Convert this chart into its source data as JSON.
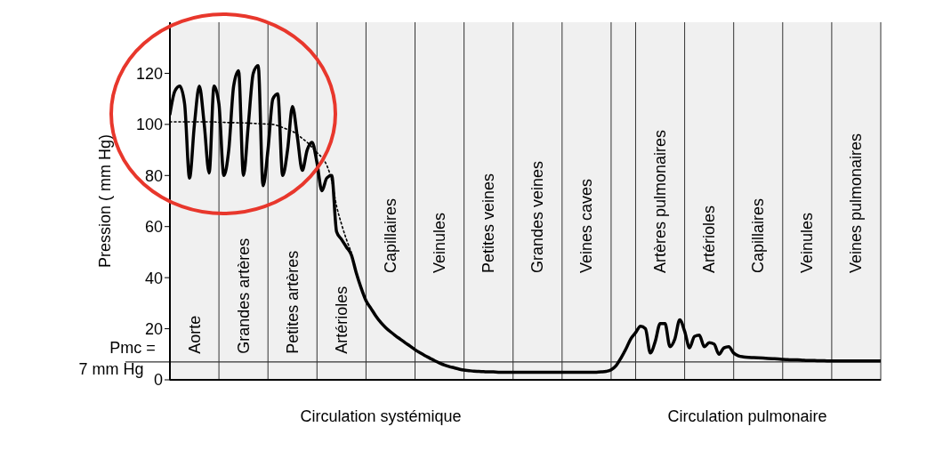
{
  "chart_data": {
    "type": "line",
    "ylabel": "Pression ( mm Hg)",
    "annotations": [
      "Circulation systémique",
      "Circulation pulmonaire"
    ],
    "ylim": [
      0,
      140
    ],
    "yticks": [
      0,
      20,
      40,
      60,
      80,
      100,
      120
    ],
    "grid": "x",
    "legend": false,
    "marker": "none",
    "categories": [
      null,
      null,
      null,
      null,
      null,
      "Aorte",
      null,
      null,
      null,
      null,
      null,
      null,
      null,
      null,
      null,
      "Grandes artères",
      null,
      null,
      null,
      null,
      null,
      null,
      null,
      null,
      null,
      "Petites artères",
      null,
      null,
      null,
      null,
      null,
      null,
      null,
      null,
      null,
      "Artérioles",
      null,
      null,
      null,
      null,
      null,
      null,
      null,
      null,
      null,
      "Capillaires",
      null,
      null,
      null,
      null,
      null,
      null,
      null,
      null,
      null,
      "Veinules",
      null,
      null,
      null,
      null,
      null,
      null,
      null,
      null,
      null,
      "Petites veines",
      null,
      null,
      null,
      null,
      null,
      null,
      null,
      null,
      null,
      "Grandes veines",
      null,
      null,
      null,
      null,
      null,
      null,
      null,
      null,
      null,
      "Veines caves",
      null,
      null,
      null,
      null,
      null,
      null,
      null,
      null,
      null,
      null,
      null,
      null,
      null,
      null,
      "Artères pulmonaires",
      null,
      null,
      null,
      null,
      null,
      null,
      null,
      null,
      null,
      "Artérioles",
      null,
      null,
      null,
      null,
      null,
      null,
      null,
      null,
      null,
      "Capillaires",
      null,
      null,
      null,
      null,
      null,
      null,
      null,
      null,
      null,
      "Veinules",
      null,
      null,
      null,
      null,
      null,
      null,
      null,
      null,
      null,
      "Veines pulmonaires",
      null,
      null,
      null,
      null,
      null
    ],
    "series": [
      {
        "color": "#000000",
        "line_style": "solid",
        "values": [
          104,
          113,
          115,
          108,
          79,
          100,
          115,
          100,
          81,
          115,
          108,
          80,
          90,
          115,
          121,
          80,
          100,
          120,
          123,
          76,
          90,
          110,
          112,
          80,
          90,
          107,
          95,
          82,
          90,
          93,
          85,
          74,
          79,
          80,
          58,
          55,
          52,
          49,
          42,
          36,
          31,
          28,
          25,
          22.5,
          20.5,
          18.8,
          17.3,
          15.9,
          14.5,
          13.2,
          11.8,
          10.6,
          9.5,
          8.5,
          7.5,
          6.6,
          5.8,
          5.2,
          4.7,
          4.2,
          3.8,
          3.6,
          3.4,
          3.3,
          3.2,
          3.1,
          3.1,
          3,
          3,
          3,
          3,
          3,
          3,
          3,
          3,
          3,
          3,
          3,
          3,
          3,
          3,
          3,
          3,
          3,
          3,
          3,
          3,
          3,
          3.1,
          3.3,
          3.9,
          5.5,
          8.5,
          12,
          16,
          18.5,
          21,
          20,
          10.5,
          15,
          22,
          22,
          13,
          16,
          23.5,
          19,
          12.5,
          17,
          17.5,
          13,
          14.5,
          14,
          10,
          12.5,
          13,
          10.5,
          9.4,
          9,
          8.8,
          8.7,
          8.6,
          8.5,
          8.4,
          8.3,
          8.2,
          8,
          7.9,
          7.8,
          7.8,
          7.7,
          7.6,
          7.6,
          7.5,
          7.5,
          7.4,
          7.4,
          7.4,
          7.4,
          7.4,
          7.4,
          7.4,
          7.4,
          7.4,
          7.4,
          7.4,
          7.4
        ]
      },
      {
        "color": "#000000",
        "line_style": "dotted",
        "values": [
          101,
          101,
          101,
          101,
          101,
          101,
          101,
          101,
          101,
          101,
          100.8,
          100.8,
          100.7,
          100.7,
          100.6,
          100.6,
          100.5,
          100.4,
          100.3,
          100.2,
          100.1,
          100,
          99.5,
          98.8,
          98,
          97.3,
          96,
          94.5,
          93,
          91,
          89,
          87,
          84,
          78,
          68,
          61,
          55,
          50,
          null,
          null,
          null,
          null,
          null,
          null,
          null,
          null,
          null,
          null,
          null,
          null,
          null,
          null,
          null,
          null,
          null,
          null,
          null,
          null,
          null,
          null,
          null,
          null,
          null,
          null,
          null,
          null,
          null,
          null,
          null,
          null,
          null,
          null,
          null,
          null,
          null,
          null,
          null,
          null,
          null,
          null,
          null,
          null,
          null,
          null,
          null,
          null,
          null,
          null,
          null,
          null,
          null,
          null,
          null,
          null,
          null,
          null,
          null,
          null,
          null,
          null,
          null,
          null,
          null,
          null,
          null,
          null,
          null,
          null,
          null,
          null,
          null,
          null,
          null,
          null,
          null,
          null,
          null,
          null,
          null,
          null,
          null,
          null,
          null,
          null,
          null,
          null,
          null,
          null,
          null,
          null,
          null,
          null,
          null,
          null,
          null,
          null,
          null,
          null,
          null,
          null,
          null,
          null,
          null,
          null,
          null,
          null
        ]
      }
    ],
    "ref_lines": [
      {
        "axis": "y",
        "value": 7,
        "label": "Pmc =\n7 mm Hg",
        "color": "#333333"
      }
    ]
  }
}
